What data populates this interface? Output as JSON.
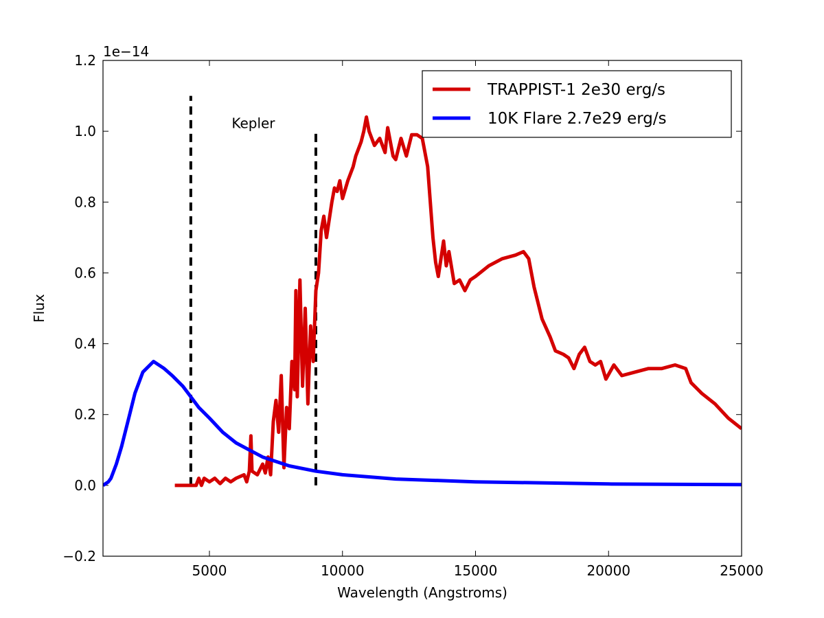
{
  "chart_data": {
    "type": "line",
    "xlabel": "Wavelength (Angstroms)",
    "ylabel": "Flux",
    "y_offset_label": "1e−14",
    "annotation": "Kepler",
    "xlim": [
      1000,
      25000
    ],
    "xticks": [
      5000,
      10000,
      15000,
      20000,
      25000
    ],
    "ylim": [
      -0.2,
      1.2
    ],
    "yticks": [
      {
        "value": -0.2,
        "label": "−0.2"
      },
      {
        "value": 0,
        "label": "0.0"
      },
      {
        "value": 0.2,
        "label": "0.2"
      },
      {
        "value": 0.4,
        "label": "0.4"
      },
      {
        "value": 0.6,
        "label": "0.6"
      },
      {
        "value": 0.8,
        "label": "0.8"
      },
      {
        "value": 1.0,
        "label": "1.0"
      },
      {
        "value": 1.2,
        "label": "1.2"
      }
    ],
    "legend": "upper right",
    "vlines": [
      {
        "x": 4300,
        "ymin": 0,
        "ymax": 1.1,
        "color": "#000000"
      },
      {
        "x": 9000,
        "ymin": 0,
        "ymax": 1.0,
        "color": "#000000"
      }
    ],
    "series": [
      {
        "name": "TRAPPIST-1 2e30 erg/s",
        "color": "#d40000",
        "x": [
          3700,
          4500,
          4600,
          4700,
          4800,
          5000,
          5200,
          5400,
          5600,
          5800,
          6000,
          6300,
          6400,
          6500,
          6560,
          6600,
          6800,
          7000,
          7100,
          7200,
          7300,
          7400,
          7500,
          7600,
          7700,
          7800,
          7900,
          8000,
          8100,
          8200,
          8250,
          8300,
          8400,
          8500,
          8600,
          8700,
          8800,
          8900,
          9000,
          9100,
          9200,
          9300,
          9400,
          9600,
          9700,
          9800,
          9900,
          10000,
          10200,
          10400,
          10500,
          10700,
          10800,
          10900,
          11000,
          11200,
          11400,
          11600,
          11700,
          11900,
          12000,
          12200,
          12400,
          12600,
          12800,
          13000,
          13200,
          13400,
          13500,
          13600,
          13800,
          13900,
          14000,
          14200,
          14400,
          14600,
          14800,
          15000,
          15500,
          16000,
          16500,
          16800,
          17000,
          17200,
          17500,
          17800,
          18000,
          18300,
          18500,
          18700,
          18900,
          19100,
          19300,
          19500,
          19700,
          19900,
          20200,
          20500,
          21000,
          21500,
          22000,
          22500,
          22900,
          23100,
          23500,
          24000,
          24500,
          25000
        ],
        "values": [
          0,
          0,
          0.02,
          0,
          0.02,
          0.01,
          0.02,
          0.005,
          0.02,
          0.01,
          0.02,
          0.03,
          0.01,
          0.04,
          0.14,
          0.04,
          0.03,
          0.06,
          0.035,
          0.08,
          0.03,
          0.18,
          0.24,
          0.15,
          0.31,
          0.05,
          0.22,
          0.16,
          0.35,
          0.27,
          0.55,
          0.25,
          0.58,
          0.28,
          0.5,
          0.23,
          0.45,
          0.35,
          0.55,
          0.6,
          0.72,
          0.76,
          0.7,
          0.8,
          0.84,
          0.83,
          0.86,
          0.81,
          0.86,
          0.9,
          0.93,
          0.97,
          1.0,
          1.04,
          1.0,
          0.96,
          0.98,
          0.94,
          1.01,
          0.93,
          0.92,
          0.98,
          0.93,
          0.99,
          0.99,
          0.98,
          0.9,
          0.7,
          0.63,
          0.59,
          0.69,
          0.62,
          0.66,
          0.57,
          0.58,
          0.55,
          0.58,
          0.59,
          0.62,
          0.64,
          0.65,
          0.66,
          0.64,
          0.56,
          0.47,
          0.42,
          0.38,
          0.37,
          0.36,
          0.33,
          0.37,
          0.39,
          0.35,
          0.34,
          0.35,
          0.3,
          0.34,
          0.31,
          0.32,
          0.33,
          0.33,
          0.34,
          0.33,
          0.29,
          0.26,
          0.23,
          0.19,
          0.16
        ]
      },
      {
        "name": "10K Flare 2.7e29 erg/s",
        "color": "#0000ff",
        "x": [
          1000,
          1200,
          1300,
          1500,
          1700,
          2000,
          2200,
          2500,
          2900,
          3300,
          3600,
          4000,
          4300,
          4600,
          5000,
          5500,
          6000,
          6500,
          7000,
          8000,
          9000,
          10000,
          12000,
          15000,
          20000,
          25000
        ],
        "values": [
          0,
          0.01,
          0.02,
          0.06,
          0.11,
          0.2,
          0.26,
          0.32,
          0.35,
          0.33,
          0.31,
          0.28,
          0.25,
          0.22,
          0.19,
          0.15,
          0.12,
          0.1,
          0.08,
          0.055,
          0.04,
          0.03,
          0.018,
          0.01,
          0.004,
          0.002
        ]
      }
    ]
  }
}
